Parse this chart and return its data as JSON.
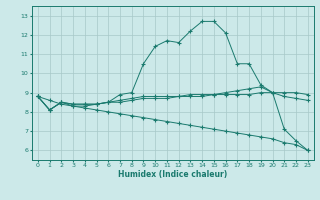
{
  "xlabel": "Humidex (Indice chaleur)",
  "bg_color": "#cce9e9",
  "grid_color": "#a8c8c8",
  "line_color": "#1a7a6e",
  "xlim": [
    -0.5,
    23.5
  ],
  "ylim": [
    5.5,
    13.5
  ],
  "xticks": [
    0,
    1,
    2,
    3,
    4,
    5,
    6,
    7,
    8,
    9,
    10,
    11,
    12,
    13,
    14,
    15,
    16,
    17,
    18,
    19,
    20,
    21,
    22,
    23
  ],
  "yticks": [
    6,
    7,
    8,
    9,
    10,
    11,
    12,
    13
  ],
  "series": [
    {
      "x": [
        0,
        1,
        2,
        3,
        4,
        5,
        6,
        7,
        8,
        9,
        10,
        11,
        12,
        13,
        14,
        15,
        16,
        17,
        18,
        19,
        20,
        21,
        22,
        23
      ],
      "y": [
        8.8,
        8.1,
        8.5,
        8.3,
        8.3,
        8.4,
        8.5,
        8.9,
        9.0,
        10.5,
        11.4,
        11.7,
        11.6,
        12.2,
        12.7,
        12.7,
        12.1,
        10.5,
        10.5,
        9.4,
        9.0,
        7.1,
        6.5,
        6.0
      ]
    },
    {
      "x": [
        0,
        1,
        2,
        3,
        4,
        5,
        6,
        7,
        8,
        9,
        10,
        11,
        12,
        13,
        14,
        15,
        16,
        17,
        18,
        19,
        20,
        21,
        22,
        23
      ],
      "y": [
        8.8,
        8.1,
        8.5,
        8.4,
        8.4,
        8.4,
        8.5,
        8.6,
        8.7,
        8.8,
        8.8,
        8.8,
        8.8,
        8.9,
        8.9,
        8.9,
        9.0,
        9.1,
        9.2,
        9.3,
        9.0,
        9.0,
        9.0,
        8.9
      ]
    },
    {
      "x": [
        0,
        1,
        2,
        3,
        4,
        5,
        6,
        7,
        8,
        9,
        10,
        11,
        12,
        13,
        14,
        15,
        16,
        17,
        18,
        19,
        20,
        21,
        22,
        23
      ],
      "y": [
        8.8,
        8.1,
        8.5,
        8.4,
        8.4,
        8.4,
        8.5,
        8.5,
        8.6,
        8.7,
        8.7,
        8.7,
        8.8,
        8.8,
        8.8,
        8.9,
        8.9,
        8.9,
        8.9,
        9.0,
        9.0,
        8.8,
        8.7,
        8.6
      ]
    },
    {
      "x": [
        0,
        1,
        2,
        3,
        4,
        5,
        6,
        7,
        8,
        9,
        10,
        11,
        12,
        13,
        14,
        15,
        16,
        17,
        18,
        19,
        20,
        21,
        22,
        23
      ],
      "y": [
        8.8,
        8.6,
        8.4,
        8.3,
        8.2,
        8.1,
        8.0,
        7.9,
        7.8,
        7.7,
        7.6,
        7.5,
        7.4,
        7.3,
        7.2,
        7.1,
        7.0,
        6.9,
        6.8,
        6.7,
        6.6,
        6.4,
        6.3,
        6.0
      ]
    }
  ]
}
